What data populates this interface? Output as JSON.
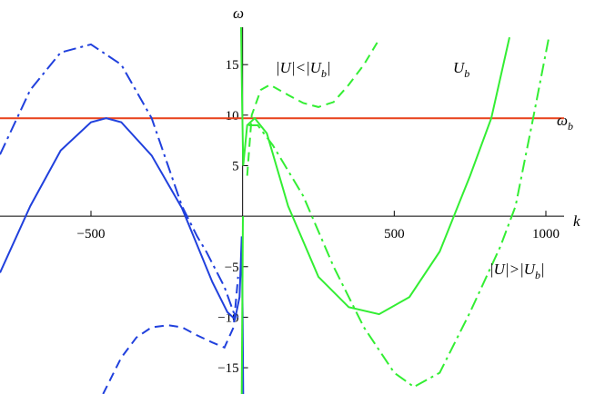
{
  "chart_data": {
    "type": "line",
    "x_label": "k",
    "y_label": "ω",
    "xlim": [
      -800,
      1060
    ],
    "ylim": [
      -17.6,
      18.7
    ],
    "xticks": [
      {
        "value": -500,
        "label": "−500"
      },
      500,
      1000
    ],
    "yticks": [
      {
        "value": -15,
        "label": "−15"
      },
      {
        "value": -10,
        "label": "−10"
      },
      {
        "value": -5,
        "label": "−5"
      },
      5,
      10,
      15
    ],
    "series": [
      {
        "color": "#e8401a",
        "dash": "solid",
        "x": [
          -800,
          1060
        ],
        "values": [
          9.7,
          9.7
        ]
      },
      {
        "color": "#2040dd",
        "dash": "solid",
        "x": [
          -800,
          -700,
          -600,
          -500,
          -450,
          -400,
          -300,
          -200,
          -100,
          -50,
          -25,
          -10,
          -3,
          0,
          2
        ],
        "values": [
          -5.6,
          1,
          6.5,
          9.3,
          9.7,
          9.3,
          6,
          0.8,
          -6.5,
          -9.5,
          -10.2,
          -8,
          -2,
          -10,
          -17.6
        ]
      },
      {
        "color": "#2040dd",
        "dash": "dashdot",
        "x": [
          -800,
          -700,
          -600,
          -500,
          -400,
          -300,
          -200,
          -150,
          -120,
          -60,
          -30,
          -15
        ],
        "values": [
          6.1,
          12.5,
          16.2,
          17,
          15,
          9.7,
          1,
          -2,
          -3.5,
          -7,
          -9.5,
          -10
        ]
      },
      {
        "color": "#2040dd",
        "dash": "dashed",
        "x": [
          -460,
          -400,
          -350,
          -300,
          -245,
          -200,
          -150,
          -100,
          -60,
          -30,
          -15
        ],
        "values": [
          -17.6,
          -14,
          -12,
          -11,
          -10.8,
          -11,
          -11.8,
          -12.5,
          -13,
          -11,
          -6
        ]
      },
      {
        "color": "#33ee33",
        "dash": "solid",
        "x": [
          -5,
          -2,
          2,
          15,
          40,
          80,
          150,
          250,
          350,
          450,
          550,
          650,
          750,
          820,
          880
        ],
        "values": [
          18.7,
          12,
          5,
          9,
          9.7,
          8.2,
          1,
          -6,
          -9,
          -9.7,
          -8,
          -3.5,
          4,
          9.7,
          17.7
        ]
      },
      {
        "color": "#33ee33",
        "dash": "solid",
        "x": [
          1,
          -3
        ],
        "values": [
          0,
          -17.6
        ]
      },
      {
        "color": "#33ee33",
        "dash": "dashdot",
        "x": [
          20,
          50,
          100,
          200,
          300,
          400,
          500,
          565,
          650,
          750,
          850,
          900,
          958,
          1010
        ],
        "values": [
          9,
          9,
          7,
          2,
          -5,
          -11,
          -15.5,
          -16.9,
          -15.5,
          -9.5,
          -3,
          1,
          9.7,
          17.7
        ]
      },
      {
        "color": "#33ee33",
        "dash": "dashed",
        "x": [
          15,
          30,
          60,
          90,
          150,
          200,
          250,
          300,
          350,
          400,
          450
        ],
        "values": [
          4,
          10,
          12.5,
          13,
          12,
          11.2,
          10.8,
          11.3,
          13,
          15,
          17.5
        ]
      }
    ],
    "annotations": [
      {
        "parts": [
          "ω",
          "b",
          ""
        ]
      },
      {
        "parts": [
          "|U|<|U",
          "b",
          "|"
        ]
      },
      {
        "parts": [
          "U",
          "b",
          ""
        ]
      },
      {
        "parts": [
          "|U|>|U",
          "b",
          "|"
        ]
      }
    ]
  }
}
